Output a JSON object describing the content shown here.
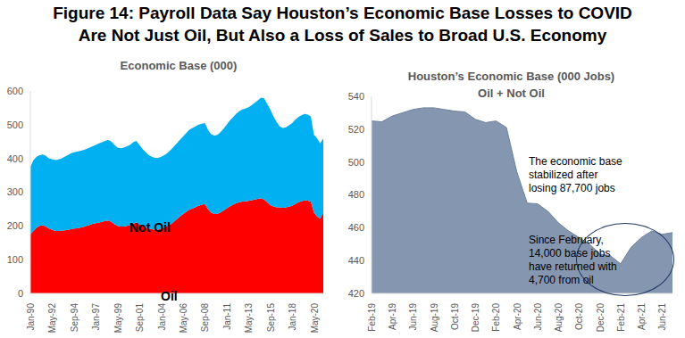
{
  "title": [
    "Figure 14: Payroll Data Say Houston’s Economic Base Losses to COVID",
    "Are Not Just Oil, But Also a Loss of Sales to Broad U.S. Economy"
  ],
  "chart_data": [
    {
      "type": "area",
      "title": "Economic Base (000)",
      "stacked": true,
      "grid": false,
      "categories": [
        "Jan-90",
        null,
        null,
        null,
        null,
        null,
        null,
        "May-92",
        null,
        null,
        null,
        null,
        null,
        null,
        "Sep-94",
        null,
        null,
        null,
        null,
        null,
        null,
        "Jan-97",
        null,
        null,
        null,
        null,
        null,
        null,
        "May-99",
        null,
        null,
        null,
        null,
        null,
        null,
        "Sep-01",
        null,
        null,
        null,
        null,
        null,
        null,
        "Jan-04",
        null,
        null,
        null,
        null,
        null,
        null,
        "May-06",
        null,
        null,
        null,
        null,
        null,
        null,
        "Sep-08",
        null,
        null,
        null,
        null,
        null,
        null,
        "Jan-11",
        null,
        null,
        null,
        null,
        null,
        null,
        "May-13",
        null,
        null,
        null,
        null,
        null,
        null,
        "Sep-15",
        null,
        null,
        null,
        null,
        null,
        null,
        "Jan-18",
        null,
        null,
        null,
        null,
        null,
        null,
        "May-20",
        null,
        null,
        null
      ],
      "series": [
        {
          "name": "Oil",
          "color": "#ff0000",
          "values": [
            175,
            185,
            195,
            200,
            202,
            198,
            192,
            188,
            185,
            185,
            186,
            187,
            188,
            190,
            192,
            193,
            195,
            197,
            200,
            203,
            206,
            208,
            210,
            212,
            215,
            216,
            212,
            205,
            200,
            198,
            198,
            200,
            203,
            207,
            210,
            205,
            200,
            195,
            192,
            190,
            188,
            189,
            192,
            195,
            200,
            205,
            212,
            220,
            228,
            235,
            242,
            248,
            252,
            256,
            260,
            263,
            265,
            250,
            240,
            235,
            236,
            240,
            246,
            252,
            258,
            263,
            267,
            270,
            272,
            273,
            274,
            276,
            278,
            280,
            282,
            278,
            270,
            262,
            258,
            255,
            255,
            254,
            255,
            257,
            260,
            265,
            270,
            273,
            276,
            275,
            272,
            240,
            228,
            222,
            240
          ]
        },
        {
          "name": "Not Oil",
          "color": "#00b0f0",
          "values": [
            200,
            210,
            210,
            210,
            210,
            210,
            208,
            210,
            210,
            212,
            214,
            218,
            222,
            225,
            226,
            227,
            227,
            228,
            228,
            229,
            230,
            232,
            235,
            236,
            237,
            239,
            238,
            235,
            232,
            232,
            234,
            236,
            237,
            241,
            242,
            235,
            228,
            223,
            218,
            215,
            214,
            213,
            213,
            215,
            216,
            220,
            223,
            225,
            227,
            230,
            233,
            237,
            238,
            239,
            240,
            240,
            240,
            235,
            232,
            233,
            234,
            238,
            242,
            248,
            254,
            259,
            265,
            270,
            273,
            275,
            278,
            282,
            287,
            292,
            298,
            300,
            292,
            283,
            267,
            253,
            240,
            236,
            237,
            241,
            245,
            250,
            253,
            255,
            256,
            255,
            253,
            230,
            232,
            223,
            220
          ]
        }
      ],
      "ylim": [
        0,
        600
      ],
      "yticks": [
        0,
        100,
        200,
        300,
        400,
        500,
        600
      ]
    },
    {
      "type": "area",
      "title": "Houston’s Economic Base (000 Jobs)",
      "subtitle": "Oil + Not Oil",
      "grid": false,
      "color": "#8496b0",
      "categories": [
        "Feb-19",
        null,
        "Apr-19",
        null,
        "Jun-19",
        null,
        "Aug-19",
        null,
        "Oct-19",
        null,
        "Dec-19",
        null,
        "Feb-20",
        null,
        "Apr-20",
        null,
        "Jun-20",
        null,
        "Aug-20",
        null,
        "Oct-20",
        null,
        "Dec-20",
        null,
        "Feb-21",
        null,
        "Apr-21",
        null,
        "Jun-21",
        null
      ],
      "values": [
        525,
        524.5,
        528,
        530,
        532,
        533,
        533,
        532,
        531,
        530.5,
        526,
        524,
        525,
        521,
        494,
        475,
        474.5,
        470,
        463,
        458,
        454,
        450,
        444,
        443,
        438,
        448,
        454,
        458,
        456,
        457
      ],
      "ylim": [
        420,
        540
      ],
      "yticks": [
        420,
        440,
        460,
        480,
        500,
        520,
        540
      ],
      "annotations": [
        [
          "The economic base",
          "stabilized after",
          "losing 87,700 jobs"
        ],
        [
          "Since February,",
          "14,000 base jobs",
          "have returned with",
          "4,700 from oil"
        ]
      ]
    }
  ]
}
